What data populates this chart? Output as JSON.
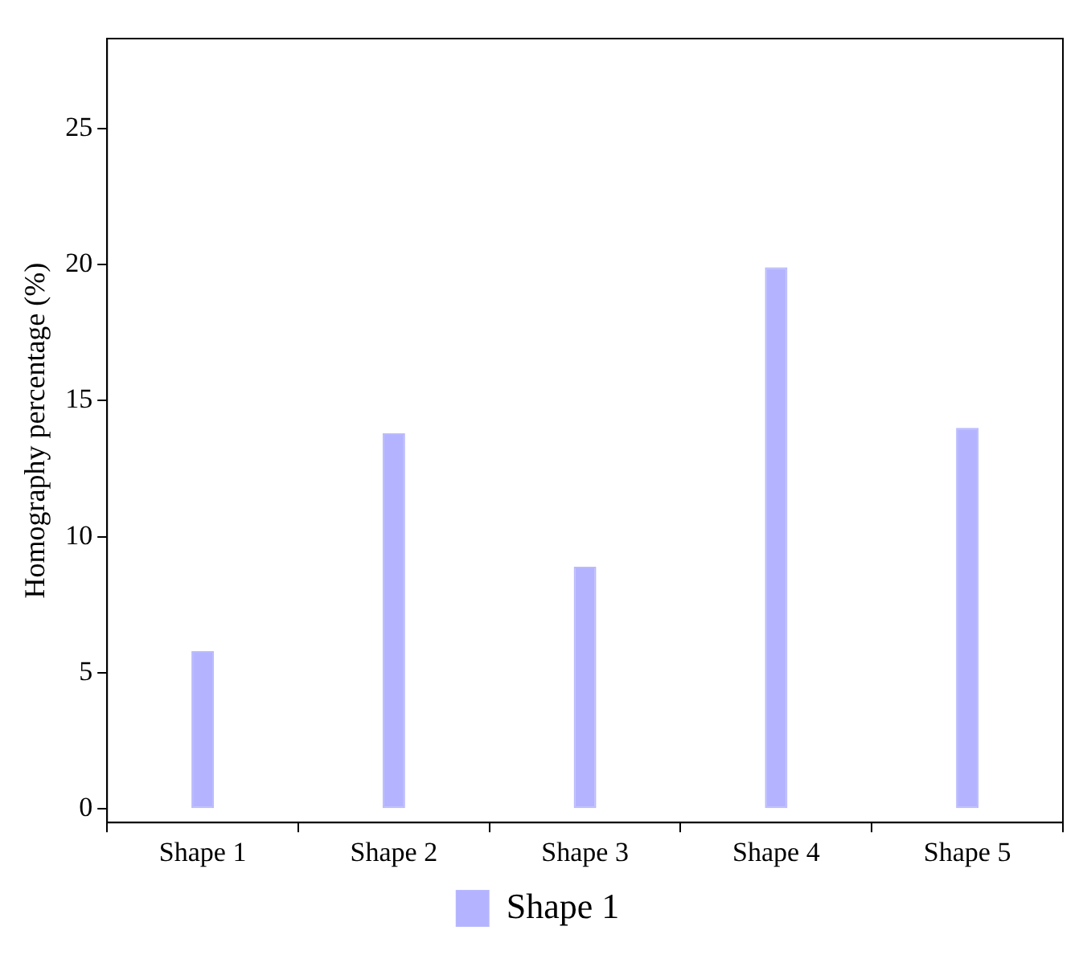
{
  "chart_data": {
    "type": "bar",
    "ylabel": "Homography percentage (%)",
    "categories": [
      "Shape 1",
      "Shape 2",
      "Shape 3",
      "Shape 4",
      "Shape 5"
    ],
    "series": [
      {
        "name": "Shape 1",
        "color": "#b3b3ff",
        "values": [
          5.8,
          13.8,
          8.9,
          19.9,
          14.0
        ]
      }
    ],
    "ylim": [
      -0.5,
      28.3
    ],
    "yticks": [
      0,
      5,
      10,
      15,
      20,
      25
    ],
    "grid": false,
    "legend": "bottom"
  }
}
